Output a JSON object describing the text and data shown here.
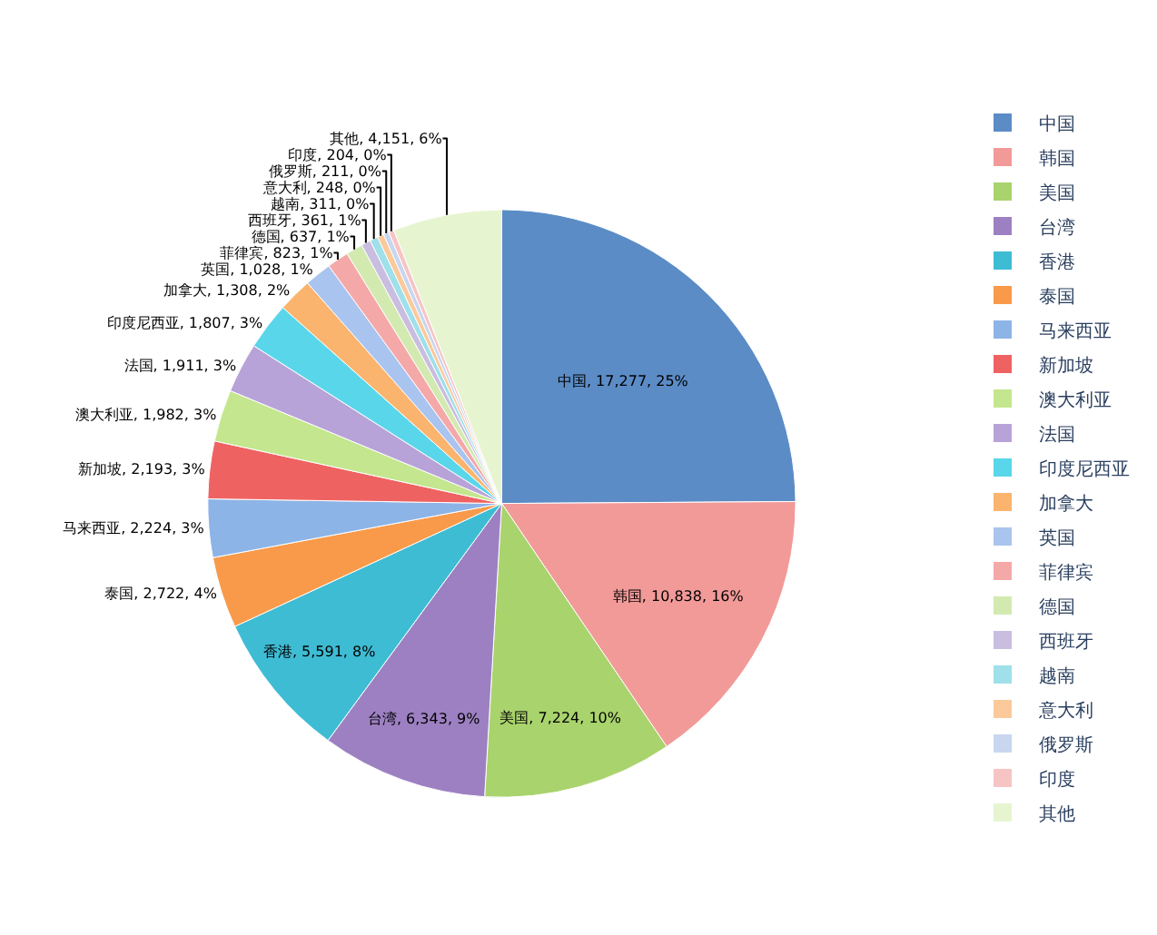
{
  "chart_data": {
    "type": "pie",
    "categories": [
      "中国",
      "韩国",
      "美国",
      "台湾",
      "香港",
      "泰国",
      "马来西亚",
      "新加坡",
      "澳大利亚",
      "法国",
      "印度尼西亚",
      "加拿大",
      "英国",
      "菲律宾",
      "德国",
      "西班牙",
      "越南",
      "意大利",
      "俄罗斯",
      "印度",
      "其他"
    ],
    "values": [
      17277,
      10838,
      7224,
      6343,
      5591,
      2722,
      2224,
      2193,
      1982,
      1911,
      1807,
      1308,
      1028,
      823,
      637,
      361,
      311,
      248,
      211,
      204,
      4151
    ],
    "value_labels": [
      "中国, 17,277, 25%",
      "韩国, 10,838, 16%",
      "美国, 7,224, 10%",
      "台湾, 6,343, 9%",
      "香港, 5,591, 8%",
      "泰国, 2,722, 4%",
      "马来西亚, 2,224, 3%",
      "新加坡, 2,193, 3%",
      "澳大利亚, 1,982, 3%",
      "法国, 1,911, 3%",
      "印度尼西亚, 1,807, 3%",
      "加拿大, 1,308, 2%",
      "英国, 1,028, 1%",
      "菲律宾, 823, 1%",
      "德国, 637, 1%",
      "西班牙, 361, 1%",
      "越南, 311, 0%",
      "意大利, 248, 0%",
      "俄罗斯, 211, 0%",
      "印度, 204, 0%",
      "其他, 4,151, 6%"
    ],
    "colors": [
      "#5b8cc6",
      "#f29a98",
      "#a9d36c",
      "#9d80c2",
      "#3ebcd4",
      "#f89a4a",
      "#8db4e6",
      "#ef6262",
      "#c4e68e",
      "#b8a3d8",
      "#5ad6ea",
      "#fbb46e",
      "#a9c4ee",
      "#f5a8a8",
      "#d2eab0",
      "#c9bde0",
      "#9fe0ea",
      "#fcc99a",
      "#c8d6f0",
      "#f7c4c4",
      "#e6f5d0"
    ],
    "legend": "right"
  }
}
